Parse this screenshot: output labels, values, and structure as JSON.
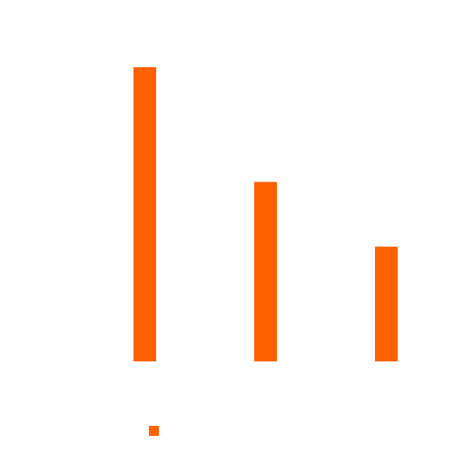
{
  "chart_data": {
    "type": "bar",
    "categories": [
      "",
      "",
      ""
    ],
    "series": [
      {
        "values": [
          100,
          61,
          39
        ],
        "color": "#ff6100"
      }
    ],
    "ylim": [
      0,
      100
    ],
    "grid": false,
    "legend_position": "bottom-center",
    "legend_entries": [
      {
        "label": "",
        "color": "#ff6100"
      }
    ]
  }
}
